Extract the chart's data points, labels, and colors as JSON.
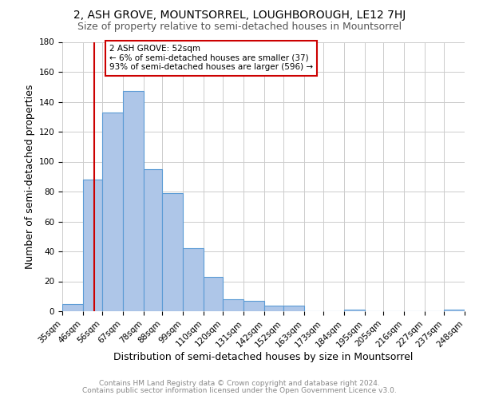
{
  "title": "2, ASH GROVE, MOUNTSORREL, LOUGHBOROUGH, LE12 7HJ",
  "subtitle": "Size of property relative to semi-detached houses in Mountsorrel",
  "xlabel": "Distribution of semi-detached houses by size in Mountsorrel",
  "ylabel": "Number of semi-detached properties",
  "bins": [
    35,
    46,
    56,
    67,
    78,
    88,
    99,
    110,
    120,
    131,
    142,
    152,
    163,
    173,
    184,
    195,
    205,
    216,
    227,
    237,
    248
  ],
  "values": [
    5,
    88,
    133,
    147,
    95,
    79,
    42,
    23,
    8,
    7,
    4,
    4,
    0,
    0,
    1,
    0,
    0,
    0,
    0,
    1
  ],
  "bar_color": "#aec6e8",
  "bar_edge_color": "#5b9bd5",
  "vline_x": 52,
  "vline_color": "#cc0000",
  "annotation_text": "2 ASH GROVE: 52sqm\n← 6% of semi-detached houses are smaller (37)\n93% of semi-detached houses are larger (596) →",
  "annotation_box_color": "#ffffff",
  "annotation_box_edge_color": "#cc0000",
  "ylim": [
    0,
    180
  ],
  "yticks": [
    0,
    20,
    40,
    60,
    80,
    100,
    120,
    140,
    160,
    180
  ],
  "tick_labels": [
    "35sqm",
    "46sqm",
    "56sqm",
    "67sqm",
    "78sqm",
    "88sqm",
    "99sqm",
    "110sqm",
    "120sqm",
    "131sqm",
    "142sqm",
    "152sqm",
    "163sqm",
    "173sqm",
    "184sqm",
    "195sqm",
    "205sqm",
    "216sqm",
    "227sqm",
    "237sqm",
    "248sqm"
  ],
  "footer1": "Contains HM Land Registry data © Crown copyright and database right 2024.",
  "footer2": "Contains public sector information licensed under the Open Government Licence v3.0.",
  "bg_color": "#ffffff",
  "grid_color": "#cccccc",
  "title_fontsize": 10,
  "subtitle_fontsize": 9,
  "axis_label_fontsize": 9,
  "tick_fontsize": 7.5,
  "footer_fontsize": 6.5
}
